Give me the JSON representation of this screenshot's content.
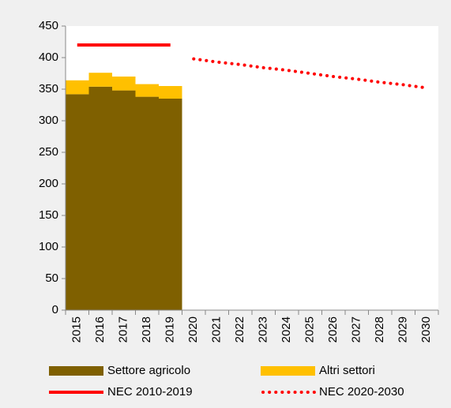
{
  "chart_data": {
    "type": "bar",
    "categories": [
      "2015",
      "2016",
      "2017",
      "2018",
      "2019",
      "2020",
      "2021",
      "2022",
      "2023",
      "2024",
      "2025",
      "2026",
      "2027",
      "2028",
      "2029",
      "2030"
    ],
    "stacked": true,
    "series": [
      {
        "name": "Settore agricolo",
        "type": "bar",
        "color": "#7f6000",
        "values": [
          342,
          354,
          348,
          338,
          335,
          null,
          null,
          null,
          null,
          null,
          null,
          null,
          null,
          null,
          null,
          null
        ]
      },
      {
        "name": "Altri settori",
        "type": "bar",
        "color": "#ffc000",
        "values": [
          22,
          22,
          22,
          20,
          20,
          null,
          null,
          null,
          null,
          null,
          null,
          null,
          null,
          null,
          null,
          null
        ]
      },
      {
        "name": "NEC 2010-2019",
        "type": "line",
        "style": "solid",
        "color": "#ff0000",
        "values": [
          420,
          420,
          420,
          420,
          420,
          null,
          null,
          null,
          null,
          null,
          null,
          null,
          null,
          null,
          null,
          null
        ]
      },
      {
        "name": "NEC 2020-2030",
        "type": "line",
        "style": "dotted",
        "color": "#ff0000",
        "values": [
          null,
          null,
          null,
          null,
          null,
          398,
          393,
          389,
          384,
          380,
          375,
          370,
          366,
          361,
          357,
          352
        ]
      }
    ],
    "ylim": [
      0,
      450
    ],
    "yticks": [
      0,
      50,
      100,
      150,
      200,
      250,
      300,
      350,
      400,
      450
    ],
    "grid": false
  }
}
